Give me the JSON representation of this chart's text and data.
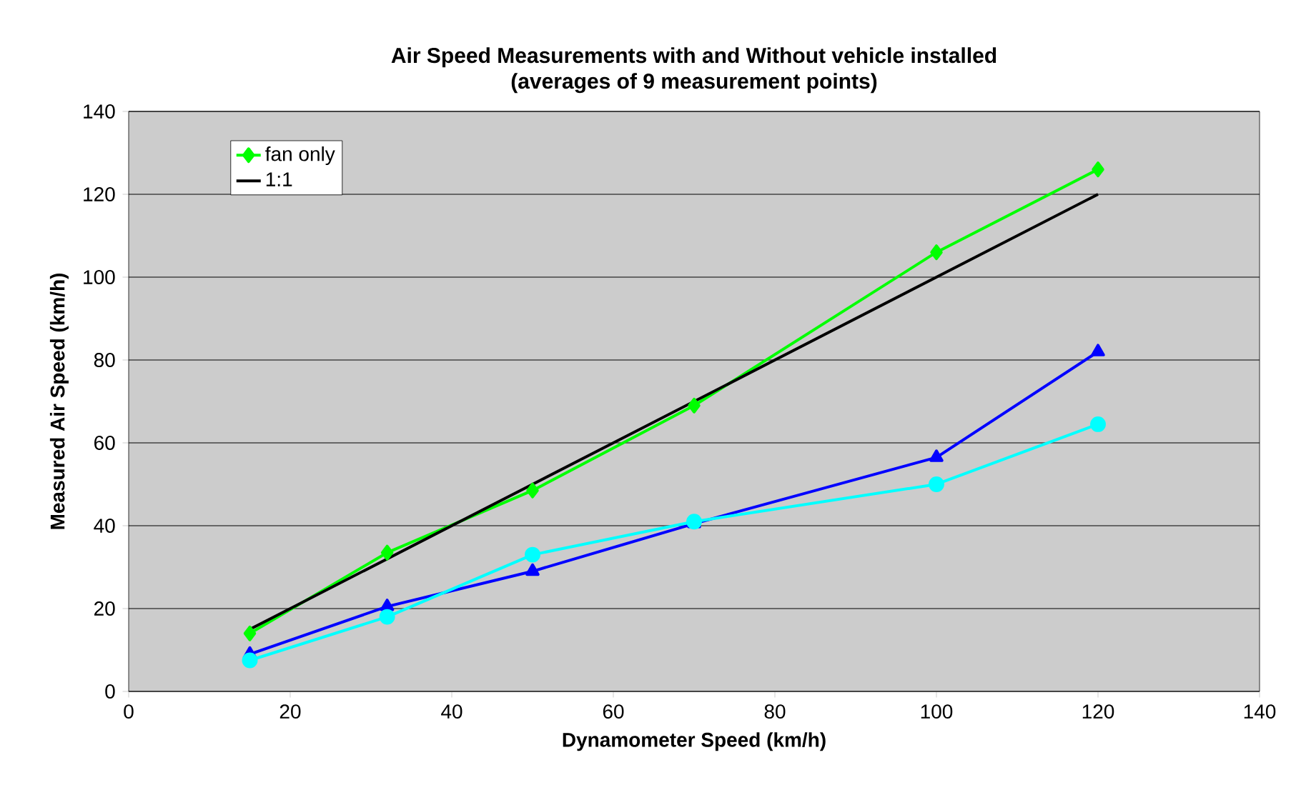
{
  "chart_data": {
    "type": "line",
    "title": "Air Speed Measurements with and Without vehicle installed",
    "subtitle": "(averages of 9 measurement points)",
    "xlabel": "Dynamometer Speed (km/h)",
    "ylabel": "Measured Air Speed (km/h)",
    "x": [
      15,
      32,
      50,
      70,
      100,
      120
    ],
    "series": [
      {
        "name": "fan only",
        "color": "#00ff00",
        "marker": "diamond",
        "values": [
          14,
          33.5,
          48.5,
          69,
          106,
          126
        ]
      },
      {
        "name": "1:1",
        "color": "#000000",
        "marker": "none",
        "values": [
          15,
          32,
          50,
          70,
          100,
          120
        ]
      },
      {
        "color": "#0000ff",
        "marker": "triangle",
        "values": [
          9,
          20.5,
          29,
          40.5,
          56.5,
          82
        ]
      },
      {
        "color": "#00ffff",
        "marker": "circle",
        "values": [
          7.5,
          18,
          33,
          41,
          50,
          64.5
        ]
      }
    ],
    "xlim": [
      0,
      140
    ],
    "xticks": [
      0,
      20,
      40,
      60,
      80,
      100,
      120,
      140
    ],
    "ylim": [
      0,
      140
    ],
    "yticks": [
      0,
      20,
      40,
      60,
      80,
      100,
      120,
      140
    ],
    "grid": "y",
    "legend": "top left",
    "line_style": "solid"
  }
}
